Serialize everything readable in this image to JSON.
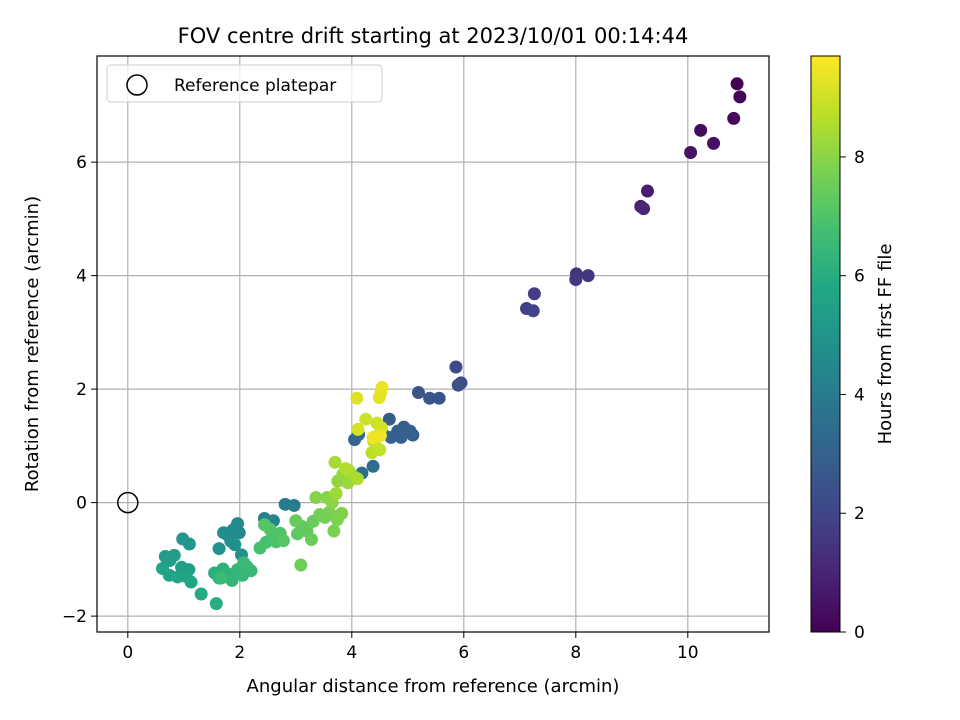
{
  "chart_data": {
    "type": "scatter",
    "title": "FOV centre drift starting at 2023/10/01 00:14:44",
    "xlabel": "Angular distance from reference (arcmin)",
    "ylabel": "Rotation from reference (arcmin)",
    "xlim": [
      -0.55,
      11.45
    ],
    "ylim": [
      -2.28,
      7.87
    ],
    "x_ticks": [
      0,
      2,
      4,
      6,
      8,
      10
    ],
    "y_ticks": [
      -2,
      0,
      2,
      4,
      6
    ],
    "grid": true,
    "legend": {
      "placement": "upper-left",
      "entries": [
        "Reference platepar"
      ]
    },
    "reference_point": {
      "x": 0,
      "y": 0,
      "label": "Reference platepar"
    },
    "colorbar": {
      "label": "Hours from first FF file",
      "colormap": "viridis",
      "range": [
        0,
        9.7
      ],
      "ticks": [
        0,
        2,
        4,
        6,
        8
      ]
    },
    "points": [
      {
        "x": 10.88,
        "y": 7.38,
        "c": 0.0
      },
      {
        "x": 10.93,
        "y": 7.15,
        "c": 0.1
      },
      {
        "x": 10.82,
        "y": 6.77,
        "c": 0.2
      },
      {
        "x": 10.23,
        "y": 6.56,
        "c": 0.3
      },
      {
        "x": 10.46,
        "y": 6.33,
        "c": 0.4
      },
      {
        "x": 10.05,
        "y": 6.17,
        "c": 0.5
      },
      {
        "x": 9.28,
        "y": 5.49,
        "c": 0.8
      },
      {
        "x": 9.16,
        "y": 5.22,
        "c": 0.9
      },
      {
        "x": 9.21,
        "y": 5.18,
        "c": 1.0
      },
      {
        "x": 8.01,
        "y": 4.03,
        "c": 1.5
      },
      {
        "x": 8.22,
        "y": 4.0,
        "c": 1.55
      },
      {
        "x": 8.0,
        "y": 3.93,
        "c": 1.6
      },
      {
        "x": 7.26,
        "y": 3.68,
        "c": 1.8
      },
      {
        "x": 7.12,
        "y": 3.42,
        "c": 1.85
      },
      {
        "x": 7.24,
        "y": 3.38,
        "c": 1.9
      },
      {
        "x": 5.86,
        "y": 2.39,
        "c": 2.2
      },
      {
        "x": 5.95,
        "y": 2.11,
        "c": 2.25
      },
      {
        "x": 5.9,
        "y": 2.07,
        "c": 2.3
      },
      {
        "x": 5.19,
        "y": 1.94,
        "c": 2.5
      },
      {
        "x": 5.39,
        "y": 1.84,
        "c": 2.55
      },
      {
        "x": 5.56,
        "y": 1.84,
        "c": 2.6
      },
      {
        "x": 4.67,
        "y": 1.47,
        "c": 2.8
      },
      {
        "x": 4.93,
        "y": 1.33,
        "c": 2.85
      },
      {
        "x": 4.82,
        "y": 1.26,
        "c": 2.9
      },
      {
        "x": 5.04,
        "y": 1.26,
        "c": 2.95
      },
      {
        "x": 5.09,
        "y": 1.19,
        "c": 3.0
      },
      {
        "x": 4.7,
        "y": 1.15,
        "c": 3.0
      },
      {
        "x": 4.88,
        "y": 1.15,
        "c": 3.05
      },
      {
        "x": 4.55,
        "y": 1.22,
        "c": 3.1
      },
      {
        "x": 4.05,
        "y": 1.11,
        "c": 3.2
      },
      {
        "x": 4.12,
        "y": 1.2,
        "c": 3.25
      },
      {
        "x": 4.38,
        "y": 0.64,
        "c": 3.4
      },
      {
        "x": 4.18,
        "y": 0.52,
        "c": 3.45
      },
      {
        "x": 2.97,
        "y": -0.05,
        "c": 4.0
      },
      {
        "x": 2.81,
        "y": -0.03,
        "c": 4.05
      },
      {
        "x": 2.44,
        "y": -0.28,
        "c": 4.2
      },
      {
        "x": 2.6,
        "y": -0.32,
        "c": 4.25
      },
      {
        "x": 1.96,
        "y": -0.37,
        "c": 4.5
      },
      {
        "x": 1.99,
        "y": -0.53,
        "c": 4.55
      },
      {
        "x": 1.88,
        "y": -0.48,
        "c": 4.6
      },
      {
        "x": 1.78,
        "y": -0.57,
        "c": 4.65
      },
      {
        "x": 1.71,
        "y": -0.53,
        "c": 4.7
      },
      {
        "x": 1.84,
        "y": -0.68,
        "c": 4.75
      },
      {
        "x": 1.91,
        "y": -0.74,
        "c": 4.8
      },
      {
        "x": 2.03,
        "y": -0.92,
        "c": 4.85
      },
      {
        "x": 1.63,
        "y": -0.81,
        "c": 4.9
      },
      {
        "x": 0.98,
        "y": -0.64,
        "c": 5.1
      },
      {
        "x": 1.1,
        "y": -0.73,
        "c": 5.15
      },
      {
        "x": 0.67,
        "y": -0.95,
        "c": 5.3
      },
      {
        "x": 0.83,
        "y": -0.93,
        "c": 5.35
      },
      {
        "x": 0.75,
        "y": -1.02,
        "c": 5.4
      },
      {
        "x": 0.96,
        "y": -1.14,
        "c": 5.45
      },
      {
        "x": 1.09,
        "y": -1.18,
        "c": 5.5
      },
      {
        "x": 0.62,
        "y": -1.16,
        "c": 5.55
      },
      {
        "x": 0.74,
        "y": -1.28,
        "c": 5.6
      },
      {
        "x": 0.89,
        "y": -1.31,
        "c": 5.65
      },
      {
        "x": 1.04,
        "y": -1.3,
        "c": 5.7
      },
      {
        "x": 1.13,
        "y": -1.4,
        "c": 5.75
      },
      {
        "x": 1.31,
        "y": -1.61,
        "c": 5.9
      },
      {
        "x": 1.58,
        "y": -1.78,
        "c": 6.0
      },
      {
        "x": 1.55,
        "y": -1.24,
        "c": 6.1
      },
      {
        "x": 1.63,
        "y": -1.33,
        "c": 6.15
      },
      {
        "x": 1.7,
        "y": -1.17,
        "c": 6.2
      },
      {
        "x": 1.79,
        "y": -1.26,
        "c": 6.25
      },
      {
        "x": 1.86,
        "y": -1.37,
        "c": 6.3
      },
      {
        "x": 1.96,
        "y": -1.18,
        "c": 6.35
      },
      {
        "x": 2.05,
        "y": -1.28,
        "c": 6.4
      },
      {
        "x": 2.13,
        "y": -1.13,
        "c": 6.45
      },
      {
        "x": 2.2,
        "y": -1.2,
        "c": 6.5
      },
      {
        "x": 2.07,
        "y": -1.06,
        "c": 6.55
      },
      {
        "x": 1.67,
        "y": -1.33,
        "c": 6.6
      },
      {
        "x": 2.36,
        "y": -0.8,
        "c": 6.8
      },
      {
        "x": 2.47,
        "y": -0.7,
        "c": 6.85
      },
      {
        "x": 2.58,
        "y": -0.6,
        "c": 6.9
      },
      {
        "x": 2.65,
        "y": -0.69,
        "c": 6.95
      },
      {
        "x": 2.72,
        "y": -0.54,
        "c": 7.0
      },
      {
        "x": 2.54,
        "y": -0.47,
        "c": 7.05
      },
      {
        "x": 2.44,
        "y": -0.39,
        "c": 7.1
      },
      {
        "x": 2.78,
        "y": -0.67,
        "c": 7.15
      },
      {
        "x": 3.03,
        "y": -0.55,
        "c": 7.25
      },
      {
        "x": 3.11,
        "y": -0.42,
        "c": 7.3
      },
      {
        "x": 3.2,
        "y": -0.5,
        "c": 7.35
      },
      {
        "x": 3.0,
        "y": -0.32,
        "c": 7.4
      },
      {
        "x": 3.31,
        "y": -0.33,
        "c": 7.45
      },
      {
        "x": 3.28,
        "y": -0.65,
        "c": 7.5
      },
      {
        "x": 3.09,
        "y": -1.1,
        "c": 7.55
      },
      {
        "x": 3.43,
        "y": -0.21,
        "c": 7.6
      },
      {
        "x": 3.52,
        "y": -0.26,
        "c": 7.65
      },
      {
        "x": 3.6,
        "y": -0.17,
        "c": 7.7
      },
      {
        "x": 3.68,
        "y": -0.5,
        "c": 7.75
      },
      {
        "x": 3.74,
        "y": -0.3,
        "c": 7.8
      },
      {
        "x": 3.82,
        "y": -0.19,
        "c": 7.85
      },
      {
        "x": 3.36,
        "y": 0.09,
        "c": 7.9
      },
      {
        "x": 3.56,
        "y": 0.09,
        "c": 7.95
      },
      {
        "x": 3.65,
        "y": 0.0,
        "c": 8.0
      },
      {
        "x": 3.75,
        "y": 0.38,
        "c": 8.1
      },
      {
        "x": 3.84,
        "y": 0.5,
        "c": 8.15
      },
      {
        "x": 3.93,
        "y": 0.35,
        "c": 8.2
      },
      {
        "x": 4.02,
        "y": 0.47,
        "c": 8.25
      },
      {
        "x": 3.72,
        "y": 0.16,
        "c": 8.3
      },
      {
        "x": 3.7,
        "y": 0.71,
        "c": 8.35
      },
      {
        "x": 3.95,
        "y": 0.56,
        "c": 8.4
      },
      {
        "x": 4.1,
        "y": 0.42,
        "c": 8.5
      },
      {
        "x": 3.89,
        "y": 0.6,
        "c": 8.55
      },
      {
        "x": 4.36,
        "y": 0.88,
        "c": 8.7
      },
      {
        "x": 4.44,
        "y": 0.97,
        "c": 8.75
      },
      {
        "x": 4.5,
        "y": 0.93,
        "c": 8.8
      },
      {
        "x": 4.39,
        "y": 1.08,
        "c": 8.85
      },
      {
        "x": 4.5,
        "y": 1.22,
        "c": 8.9
      },
      {
        "x": 4.25,
        "y": 1.47,
        "c": 8.95
      },
      {
        "x": 4.45,
        "y": 1.4,
        "c": 9.0
      },
      {
        "x": 4.53,
        "y": 1.32,
        "c": 9.05
      },
      {
        "x": 4.11,
        "y": 1.29,
        "c": 9.1
      },
      {
        "x": 4.09,
        "y": 1.84,
        "c": 9.2
      },
      {
        "x": 4.49,
        "y": 1.85,
        "c": 9.3
      },
      {
        "x": 4.52,
        "y": 1.94,
        "c": 9.35
      },
      {
        "x": 4.54,
        "y": 2.03,
        "c": 9.4
      },
      {
        "x": 4.51,
        "y": 1.18,
        "c": 9.45
      },
      {
        "x": 4.38,
        "y": 1.15,
        "c": 9.5
      }
    ]
  }
}
